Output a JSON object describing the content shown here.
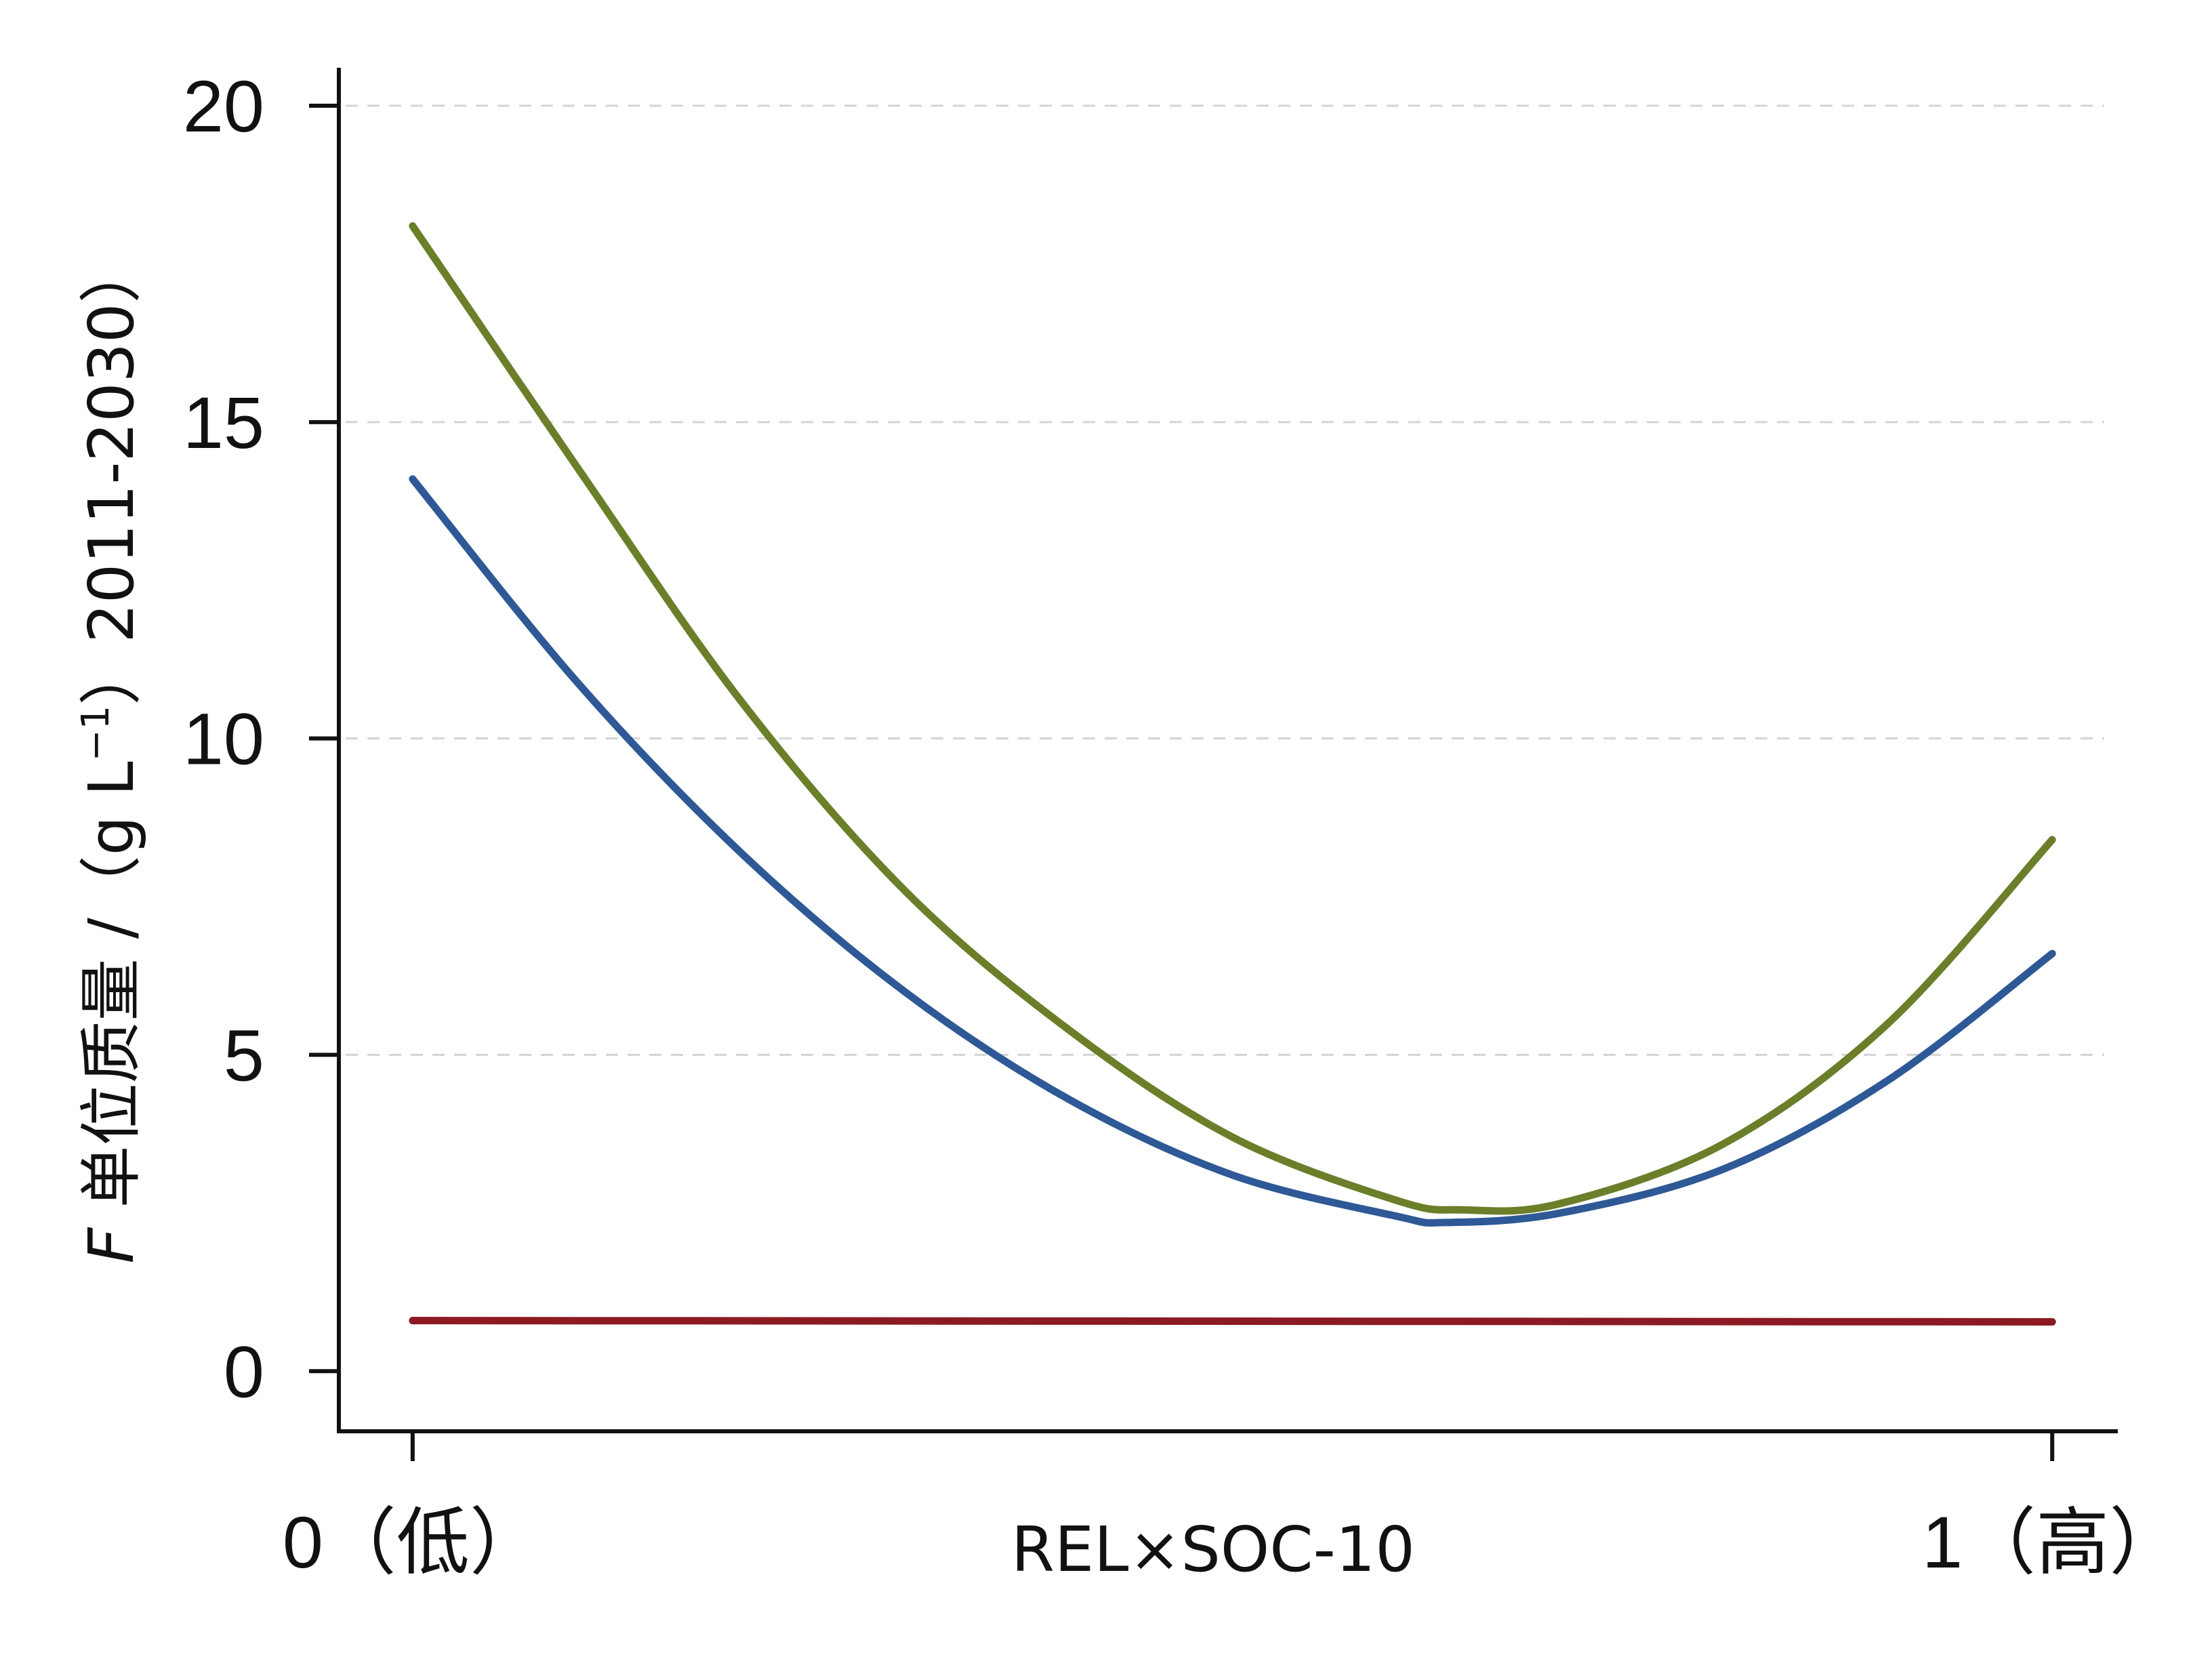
{
  "chart_data": {
    "type": "line",
    "title": "",
    "xlabel": "REL×SOC-10",
    "ylabel": {
      "var": "F",
      "text": " 单位质量 /（g L",
      "exp": "−1",
      "close": "）2011-2030）"
    },
    "xticks": [
      {
        "value": 0,
        "label": "0（低）"
      },
      {
        "value": 1,
        "label": "1（高）"
      }
    ],
    "yticks": [
      {
        "value": 0,
        "label": "0"
      },
      {
        "value": 5,
        "label": "5"
      },
      {
        "value": 10,
        "label": "10"
      },
      {
        "value": 15,
        "label": "15"
      },
      {
        "value": 20,
        "label": "20"
      }
    ],
    "xlim": [
      -0.045,
      1.04
    ],
    "ylim": [
      -0.95,
      20.6
    ],
    "grid": "horizontal-dashed",
    "series": [
      {
        "color": "#6b7e2a",
        "x": [
          0,
          0.1,
          0.2,
          0.3,
          0.4,
          0.5,
          0.6,
          0.64,
          0.7,
          0.8,
          0.9,
          1.0
        ],
        "y": [
          18.1,
          14.3,
          10.6,
          7.6,
          5.4,
          3.7,
          2.7,
          2.55,
          2.65,
          3.6,
          5.5,
          8.4
        ]
      },
      {
        "color": "#2e5996",
        "x": [
          0,
          0.1,
          0.2,
          0.3,
          0.4,
          0.5,
          0.6,
          0.63,
          0.7,
          0.8,
          0.9,
          1.0
        ],
        "y": [
          14.1,
          10.9,
          8.2,
          6.0,
          4.3,
          3.1,
          2.45,
          2.35,
          2.5,
          3.2,
          4.6,
          6.6
        ]
      },
      {
        "color": "#8b1a23",
        "x": [
          0,
          1.0
        ],
        "y": [
          0.8,
          0.78
        ]
      }
    ]
  }
}
